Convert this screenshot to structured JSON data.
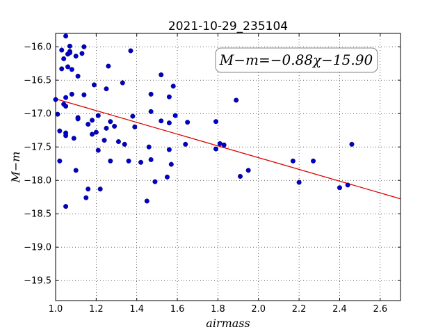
{
  "chart_data": {
    "type": "scatter",
    "title": "2021-10-29_235104",
    "xlabel": "airmass",
    "ylabel": "M−m",
    "xlim": [
      1.0,
      2.7
    ],
    "ylim": [
      -19.8,
      -15.8
    ],
    "y_inverted": true,
    "grid": true,
    "x_ticks": [
      "1.0",
      "1.2",
      "1.4",
      "1.6",
      "1.8",
      "2.0",
      "2.2",
      "2.4",
      "2.6"
    ],
    "y_ticks": [
      "−16.0",
      "−16.5",
      "−17.0",
      "−17.5",
      "−18.0",
      "−18.5",
      "−19.0",
      "−19.5"
    ],
    "annotation": "M−m=−0.88χ−15.90",
    "point_color": "#0000cc",
    "fit_line": {
      "slope": -0.88,
      "intercept": -15.9,
      "color": "#dd0000"
    },
    "points": [
      [
        1.0,
        -16.79
      ],
      [
        1.01,
        -17.01
      ],
      [
        1.02,
        -17.71
      ],
      [
        1.02,
        -17.26
      ],
      [
        1.03,
        -16.33
      ],
      [
        1.03,
        -16.05
      ],
      [
        1.04,
        -16.86
      ],
      [
        1.04,
        -16.18
      ],
      [
        1.05,
        -15.84
      ],
      [
        1.05,
        -16.76
      ],
      [
        1.05,
        -16.89
      ],
      [
        1.05,
        -17.29
      ],
      [
        1.05,
        -17.33
      ],
      [
        1.05,
        -18.39
      ],
      [
        1.06,
        -16.11
      ],
      [
        1.06,
        -16.3
      ],
      [
        1.07,
        -15.99
      ],
      [
        1.07,
        -16.07
      ],
      [
        1.07,
        -16.09
      ],
      [
        1.08,
        -16.71
      ],
      [
        1.08,
        -16.34
      ],
      [
        1.09,
        -17.37
      ],
      [
        1.1,
        -16.14
      ],
      [
        1.1,
        -17.85
      ],
      [
        1.11,
        -16.44
      ],
      [
        1.11,
        -17.06
      ],
      [
        1.11,
        -17.08
      ],
      [
        1.13,
        -16.1
      ],
      [
        1.14,
        -16.0
      ],
      [
        1.14,
        -16.72
      ],
      [
        1.15,
        -18.26
      ],
      [
        1.16,
        -17.16
      ],
      [
        1.16,
        -18.13
      ],
      [
        1.18,
        -17.1
      ],
      [
        1.18,
        -17.31
      ],
      [
        1.19,
        -16.57
      ],
      [
        1.2,
        -17.28
      ],
      [
        1.21,
        -17.03
      ],
      [
        1.21,
        -17.55
      ],
      [
        1.22,
        -18.13
      ],
      [
        1.24,
        -17.4
      ],
      [
        1.25,
        -16.63
      ],
      [
        1.25,
        -17.22
      ],
      [
        1.26,
        -16.29
      ],
      [
        1.27,
        -17.12
      ],
      [
        1.27,
        -17.71
      ],
      [
        1.29,
        -17.19
      ],
      [
        1.31,
        -17.42
      ],
      [
        1.33,
        -16.54
      ],
      [
        1.34,
        -17.46
      ],
      [
        1.36,
        -17.71
      ],
      [
        1.37,
        -16.06
      ],
      [
        1.38,
        -17.04
      ],
      [
        1.39,
        -17.2
      ],
      [
        1.42,
        -17.73
      ],
      [
        1.45,
        -18.31
      ],
      [
        1.46,
        -17.5
      ],
      [
        1.47,
        -16.71
      ],
      [
        1.47,
        -16.97
      ],
      [
        1.47,
        -17.69
      ],
      [
        1.49,
        -18.02
      ],
      [
        1.52,
        -16.42
      ],
      [
        1.52,
        -17.11
      ],
      [
        1.55,
        -17.95
      ],
      [
        1.56,
        -16.75
      ],
      [
        1.56,
        -17.54
      ],
      [
        1.56,
        -17.14
      ],
      [
        1.57,
        -17.76
      ],
      [
        1.58,
        -16.59
      ],
      [
        1.59,
        -17.03
      ],
      [
        1.64,
        -17.46
      ],
      [
        1.65,
        -17.13
      ],
      [
        1.79,
        -17.12
      ],
      [
        1.79,
        -17.53
      ],
      [
        1.81,
        -17.45
      ],
      [
        1.83,
        -17.47
      ],
      [
        1.89,
        -16.8
      ],
      [
        1.91,
        -17.94
      ],
      [
        1.95,
        -17.85
      ],
      [
        2.17,
        -17.71
      ],
      [
        2.2,
        -18.03
      ],
      [
        2.27,
        -17.71
      ],
      [
        2.4,
        -18.11
      ],
      [
        2.44,
        -18.07
      ],
      [
        2.46,
        -17.46
      ]
    ]
  }
}
